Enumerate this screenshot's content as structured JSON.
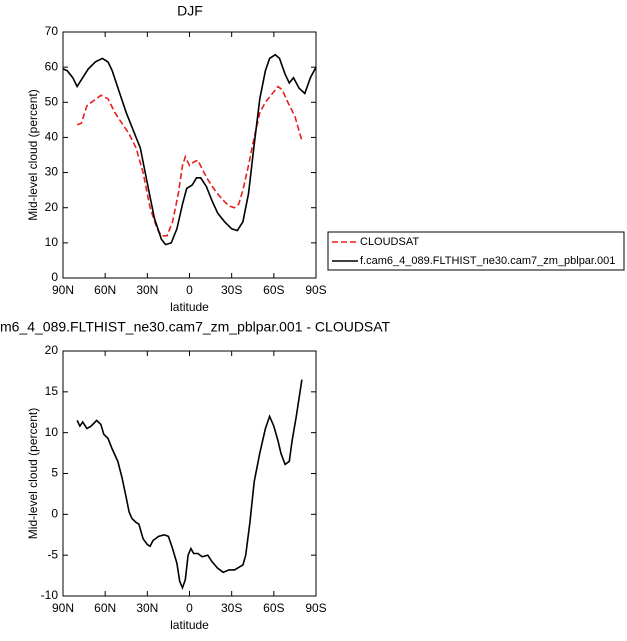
{
  "chart_data": [
    {
      "type": "line",
      "title": "DJF",
      "x_label": "latitude",
      "y_label": "Mid-level cloud (percent)",
      "xlim": [
        90,
        -90
      ],
      "xticks": [
        {
          "value": 90,
          "label": "90N"
        },
        {
          "value": 60,
          "label": "60N"
        },
        {
          "value": 30,
          "label": "30N"
        },
        0,
        {
          "value": -30,
          "label": "30S"
        },
        {
          "value": -60,
          "label": "60S"
        },
        {
          "value": -90,
          "label": "90S"
        }
      ],
      "ylim": [
        0,
        70
      ],
      "yticks": [
        0,
        10,
        20,
        30,
        40,
        50,
        60,
        70
      ],
      "legend": "right",
      "series": [
        {
          "name": "CLOUDSAT",
          "color": "#e8201c",
          "dashed": true,
          "x": [
            80,
            77,
            73,
            68,
            63,
            58,
            53,
            48,
            43,
            38,
            33,
            28,
            23,
            20,
            16,
            12,
            8,
            5,
            3,
            0,
            -3,
            -6,
            -9,
            -13,
            -18,
            -23,
            -28,
            -32,
            -35,
            -38,
            -42,
            -46,
            -50,
            -54,
            -58,
            -63,
            -66,
            -70,
            -75,
            -80
          ],
          "values": [
            43.6,
            44,
            49,
            50.5,
            52,
            51,
            47,
            44,
            41,
            37,
            30,
            20,
            14,
            12,
            12,
            16,
            24,
            32,
            34.5,
            32,
            33,
            33.5,
            31,
            28,
            25,
            22.5,
            20.5,
            20,
            21,
            25,
            32,
            40,
            47,
            50,
            52,
            54.5,
            53.5,
            50,
            46,
            39
          ]
        },
        {
          "name": "f.cam6_4_089.FLTHIST_ne30.cam7_zm_pblpar.001",
          "color": "#000000",
          "dashed": false,
          "x": [
            90,
            87,
            83,
            80,
            76,
            72,
            67,
            62,
            58,
            55,
            50,
            45,
            40,
            35,
            30,
            25,
            20,
            17,
            13,
            9,
            5,
            2,
            -2,
            -5,
            -8,
            -12,
            -16,
            -20,
            -25,
            -30,
            -34,
            -38,
            -42,
            -46,
            -50,
            -54,
            -57,
            -61,
            -64,
            -68,
            -71,
            -74,
            -78,
            -82,
            -86,
            -90
          ],
          "values": [
            59.5,
            59,
            57,
            54.5,
            57,
            59.5,
            61.5,
            62.5,
            61.5,
            59,
            53,
            47,
            42,
            37,
            27,
            17,
            11,
            9.5,
            10,
            14,
            21,
            25.5,
            26.5,
            28.5,
            28.5,
            26,
            22,
            18.5,
            16,
            14,
            13.5,
            16,
            24,
            38,
            51,
            59,
            62.5,
            63.5,
            62.5,
            58,
            55.5,
            57,
            54,
            52.5,
            57,
            60
          ]
        }
      ]
    },
    {
      "type": "line",
      "title": "m6_4_089.FLTHIST_ne30.cam7_zm_pblpar.001 - CLOUDSAT",
      "x_label": "latitude",
      "y_label": "Mid-level cloud (percent)",
      "xlim": [
        90,
        -90
      ],
      "xticks": [
        {
          "value": 90,
          "label": "90N"
        },
        {
          "value": 60,
          "label": "60N"
        },
        {
          "value": 30,
          "label": "30N"
        },
        0,
        {
          "value": -30,
          "label": "30S"
        },
        {
          "value": -60,
          "label": "60S"
        },
        {
          "value": -90,
          "label": "90S"
        }
      ],
      "ylim": [
        -10,
        20
      ],
      "yticks": [
        -10,
        -5,
        0,
        5,
        10,
        15,
        20
      ],
      "series": [
        {
          "color": "#000000",
          "dashed": false,
          "x": [
            80,
            78,
            76,
            73,
            70,
            66,
            63,
            61,
            58,
            55,
            51,
            48,
            45,
            43,
            41,
            38,
            36,
            33,
            30,
            28,
            26,
            22,
            18,
            15,
            12,
            9,
            7,
            5,
            3,
            1,
            -1,
            -3,
            -6,
            -9,
            -13,
            -16,
            -20,
            -24,
            -28,
            -32,
            -35,
            -38,
            -40,
            -43,
            -46,
            -50,
            -54,
            -57,
            -60,
            -63,
            -65,
            -68,
            -71,
            -73,
            -76,
            -80
          ],
          "values": [
            11.5,
            10.8,
            11.3,
            10.5,
            10.8,
            11.5,
            11,
            9.8,
            9.3,
            8,
            6.5,
            4.5,
            2,
            0.3,
            -0.5,
            -1,
            -1.2,
            -3,
            -3.7,
            -3.9,
            -3.2,
            -2.7,
            -2.5,
            -2.7,
            -4.2,
            -6,
            -8.2,
            -9,
            -8,
            -5,
            -4.2,
            -4.8,
            -4.8,
            -5.2,
            -5,
            -5.8,
            -6.6,
            -7.1,
            -6.8,
            -6.8,
            -6.5,
            -6.2,
            -5,
            -1,
            4,
            7.5,
            10.5,
            12,
            10.8,
            9,
            7.5,
            6.1,
            6.5,
            9,
            12,
            16.5
          ]
        }
      ]
    }
  ]
}
